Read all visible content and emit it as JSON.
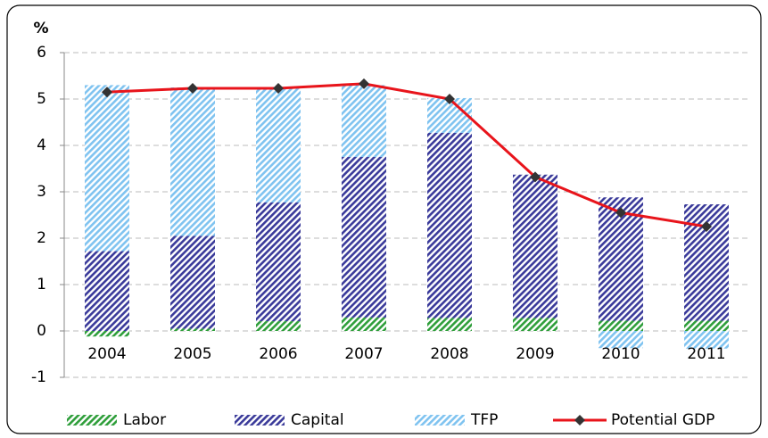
{
  "chart_data": {
    "type": "bar",
    "stacked": true,
    "y_label": "%",
    "categories": [
      "2004",
      "2005",
      "2006",
      "2007",
      "2008",
      "2009",
      "2010",
      "2011"
    ],
    "series": [
      {
        "name": "Labor",
        "type": "bar",
        "color": "#2e9e3a",
        "values": [
          -0.12,
          0.05,
          0.21,
          0.29,
          0.28,
          0.28,
          0.22,
          0.22
        ]
      },
      {
        "name": "Capital",
        "type": "bar",
        "color": "#3a3a9a",
        "values": [
          1.72,
          2.0,
          2.56,
          3.46,
          3.99,
          3.09,
          2.66,
          2.51
        ]
      },
      {
        "name": "TFP",
        "type": "bar",
        "color": "#7fc3f0",
        "values": [
          3.58,
          3.2,
          2.48,
          1.55,
          0.75,
          0.0,
          -0.37,
          -0.38
        ]
      },
      {
        "name": "Potential GDP",
        "type": "line",
        "color": "#e8141b",
        "marker_color": "#333333",
        "values": [
          5.15,
          5.23,
          5.23,
          5.33,
          5.0,
          3.32,
          2.55,
          2.25
        ]
      }
    ],
    "ylim": [
      -1,
      6
    ],
    "yticks": [
      -1,
      0,
      1,
      2,
      3,
      4,
      5,
      6
    ],
    "grid": true,
    "legend": "bottom"
  }
}
